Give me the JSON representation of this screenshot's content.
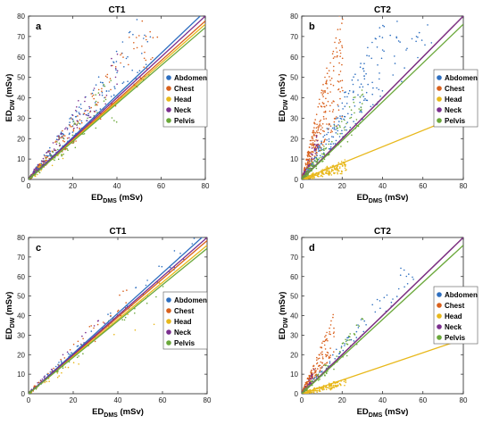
{
  "colors": {
    "Abdomen": "#2e6fc0",
    "Chest": "#d9601c",
    "Head": "#e8b81b",
    "Neck": "#7b2f8e",
    "Pelvis": "#6aa83a"
  },
  "chart_data": [
    {
      "type": "scatter",
      "panel": "a",
      "title": "CT1",
      "xlabel": "ED",
      "xlabel_sub": "DMS",
      "xlabel_unit": " (mSv)",
      "ylabel": "ED",
      "ylabel_sub": "DW",
      "ylabel_unit": " (mSv)",
      "xlim": [
        0,
        80
      ],
      "ylim": [
        0,
        80
      ],
      "xticks": [
        0,
        20,
        40,
        60,
        80
      ],
      "yticks": [
        0,
        10,
        20,
        30,
        40,
        50,
        60,
        70,
        80
      ],
      "legend": "right",
      "series": [
        {
          "name": "Abdomen",
          "fit_slope": 1.03,
          "cloud": {
            "x_max": 55,
            "slope_lo": 0.95,
            "slope_hi": 1.6,
            "count": 190
          }
        },
        {
          "name": "Chest",
          "fit_slope": 0.97,
          "cloud": {
            "x_max": 58,
            "slope_lo": 0.9,
            "slope_hi": 1.55,
            "count": 190
          }
        },
        {
          "name": "Head",
          "fit_slope": 0.95,
          "cloud": {
            "x_max": 20,
            "slope_lo": 0.6,
            "slope_hi": 1.3,
            "count": 25
          }
        },
        {
          "name": "Neck",
          "fit_slope": 1.0,
          "cloud": {
            "x_max": 40,
            "slope_lo": 1.0,
            "slope_hi": 1.7,
            "count": 90
          }
        },
        {
          "name": "Pelvis",
          "fit_slope": 0.93,
          "cloud": {
            "x_max": 40,
            "slope_lo": 0.7,
            "slope_hi": 1.4,
            "count": 70
          }
        }
      ]
    },
    {
      "type": "scatter",
      "panel": "b",
      "title": "CT2",
      "xlabel": "ED",
      "xlabel_sub": "DMS",
      "xlabel_unit": " (mSv)",
      "ylabel": "ED",
      "ylabel_sub": "DW",
      "ylabel_unit": " (mSv)",
      "xlim": [
        0,
        80
      ],
      "ylim": [
        0,
        80
      ],
      "xticks": [
        0,
        20,
        40,
        60,
        80
      ],
      "yticks": [
        0,
        10,
        20,
        30,
        40,
        50,
        60,
        70,
        80
      ],
      "legend": "top-right",
      "series": [
        {
          "name": "Abdomen",
          "fit_slope": 1.0,
          "cloud": {
            "x_max": 65,
            "slope_lo": 0.95,
            "slope_hi": 2.0,
            "count": 320
          }
        },
        {
          "name": "Chest",
          "fit_slope": 1.0,
          "cloud": {
            "x_max": 20,
            "slope_lo": 1.5,
            "slope_hi": 4.5,
            "count": 320
          }
        },
        {
          "name": "Head",
          "fit_slope": 0.4,
          "cloud": {
            "x_max": 22,
            "slope_lo": 0.15,
            "slope_hi": 0.45,
            "count": 260
          }
        },
        {
          "name": "Neck",
          "fit_slope": 1.0,
          "cloud": {
            "x_max": 8,
            "slope_lo": 1.5,
            "slope_hi": 3.0,
            "count": 60
          }
        },
        {
          "name": "Pelvis",
          "fit_slope": 0.95,
          "cloud": {
            "x_max": 30,
            "slope_lo": 0.8,
            "slope_hi": 1.6,
            "count": 140
          }
        }
      ]
    },
    {
      "type": "scatter",
      "panel": "c",
      "title": "CT1",
      "xlabel": "ED",
      "xlabel_sub": "DMS",
      "xlabel_unit": " (mSv)",
      "ylabel": "ED",
      "ylabel_sub": "DW",
      "ylabel_unit": " (mSv)",
      "xlim": [
        0,
        80
      ],
      "ylim": [
        0,
        80
      ],
      "xticks": [
        0,
        20,
        40,
        60,
        80
      ],
      "yticks": [
        0,
        10,
        20,
        30,
        40,
        50,
        60,
        70,
        80
      ],
      "legend": "right",
      "series": [
        {
          "name": "Abdomen",
          "fit_slope": 1.03,
          "cloud": {
            "x_max": 75,
            "slope_lo": 0.95,
            "slope_hi": 1.15,
            "count": 80
          }
        },
        {
          "name": "Chest",
          "fit_slope": 0.98,
          "cloud": {
            "x_max": 45,
            "slope_lo": 0.9,
            "slope_hi": 1.25,
            "count": 60
          }
        },
        {
          "name": "Head",
          "fit_slope": 0.95,
          "cloud": {
            "x_max": 60,
            "slope_lo": 0.6,
            "slope_hi": 1.0,
            "count": 20
          }
        },
        {
          "name": "Neck",
          "fit_slope": 1.0,
          "cloud": {
            "x_max": 35,
            "slope_lo": 1.0,
            "slope_hi": 1.3,
            "count": 25
          }
        },
        {
          "name": "Pelvis",
          "fit_slope": 0.93,
          "cloud": {
            "x_max": 60,
            "slope_lo": 0.85,
            "slope_hi": 1.05,
            "count": 45
          }
        }
      ]
    },
    {
      "type": "scatter",
      "panel": "d",
      "title": "CT2",
      "xlabel": "ED",
      "xlabel_sub": "DMS",
      "xlabel_unit": " (mSv)",
      "ylabel": "ED",
      "ylabel_sub": "DW",
      "ylabel_unit": " (mSv)",
      "xlim": [
        0,
        80
      ],
      "ylim": [
        0,
        80
      ],
      "xticks": [
        0,
        20,
        40,
        60,
        80
      ],
      "yticks": [
        0,
        10,
        20,
        30,
        40,
        50,
        60,
        70,
        80
      ],
      "legend": "top-right",
      "series": [
        {
          "name": "Abdomen",
          "fit_slope": 1.0,
          "cloud": {
            "x_max": 55,
            "slope_lo": 0.95,
            "slope_hi": 1.3,
            "count": 90
          }
        },
        {
          "name": "Chest",
          "fit_slope": 1.0,
          "cloud": {
            "x_max": 16,
            "slope_lo": 1.2,
            "slope_hi": 2.6,
            "count": 200
          }
        },
        {
          "name": "Head",
          "fit_slope": 0.35,
          "cloud": {
            "x_max": 22,
            "slope_lo": 0.18,
            "slope_hi": 0.38,
            "count": 200
          }
        },
        {
          "name": "Neck",
          "fit_slope": 1.0,
          "cloud": {
            "x_max": 6,
            "slope_lo": 1.2,
            "slope_hi": 2.0,
            "count": 30
          }
        },
        {
          "name": "Pelvis",
          "fit_slope": 0.95,
          "cloud": {
            "x_max": 30,
            "slope_lo": 0.8,
            "slope_hi": 1.3,
            "count": 80
          }
        }
      ]
    }
  ]
}
